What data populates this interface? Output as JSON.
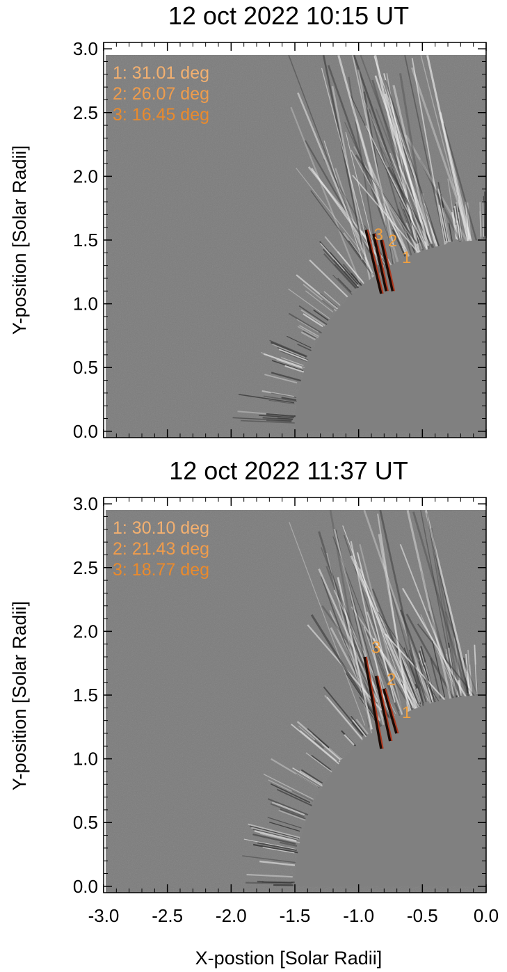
{
  "figure": {
    "xlabel": "X-postion [Solar Radii]",
    "ylabel": "Y-position [Solar Radii]",
    "xlim": [
      -3.0,
      0.0
    ],
    "ylim": [
      -0.05,
      3.05
    ],
    "x_ticks": [
      "-3.0",
      "-2.5",
      "-2.0",
      "-1.5",
      "-1.0",
      "-0.5",
      "0.0"
    ],
    "y_ticks": [
      "0.0",
      "0.5",
      "1.0",
      "1.5",
      "2.0",
      "2.5",
      "3.0"
    ],
    "solar_disk_radius": 1.5,
    "background_color": "#7c7c7c",
    "annotation_color": "#f0a040"
  },
  "panels": [
    {
      "title": "12 oct 2022 10:15 UT",
      "angles": [
        "1: 31.01 deg",
        "2: 26.07 deg",
        "3: 16.45 deg"
      ],
      "loop_markers": [
        {
          "label": "1",
          "x": -0.66,
          "y": 1.32
        },
        {
          "label": "2",
          "x": -0.77,
          "y": 1.45
        },
        {
          "label": "3",
          "x": -0.88,
          "y": 1.5
        }
      ]
    },
    {
      "title": "12 oct 2022 11:37 UT",
      "angles": [
        "1: 30.10 deg",
        "2: 21.43 deg",
        "3: 18.77 deg"
      ],
      "loop_markers": [
        {
          "label": "1",
          "x": -0.66,
          "y": 1.32
        },
        {
          "label": "2",
          "x": -0.78,
          "y": 1.58
        },
        {
          "label": "3",
          "x": -0.9,
          "y": 1.83
        }
      ]
    }
  ],
  "chart_data": [
    {
      "type": "scatter",
      "title": "12 oct 2022 10:15 UT",
      "xlabel": "X-postion [Solar Radii]",
      "ylabel": "Y-position [Solar Radii]",
      "xlim": [
        -3.0,
        0.0
      ],
      "ylim": [
        -0.05,
        3.05
      ],
      "annotations": [
        "1: 31.01 deg",
        "2: 26.07 deg",
        "3: 16.45 deg"
      ]
    },
    {
      "type": "scatter",
      "title": "12 oct 2022 11:37 UT",
      "xlabel": "X-postion [Solar Radii]",
      "ylabel": "Y-position [Solar Radii]",
      "xlim": [
        -3.0,
        0.0
      ],
      "ylim": [
        -0.05,
        3.05
      ],
      "annotations": [
        "1: 30.10 deg",
        "2: 21.43 deg",
        "3: 18.77 deg"
      ]
    }
  ]
}
